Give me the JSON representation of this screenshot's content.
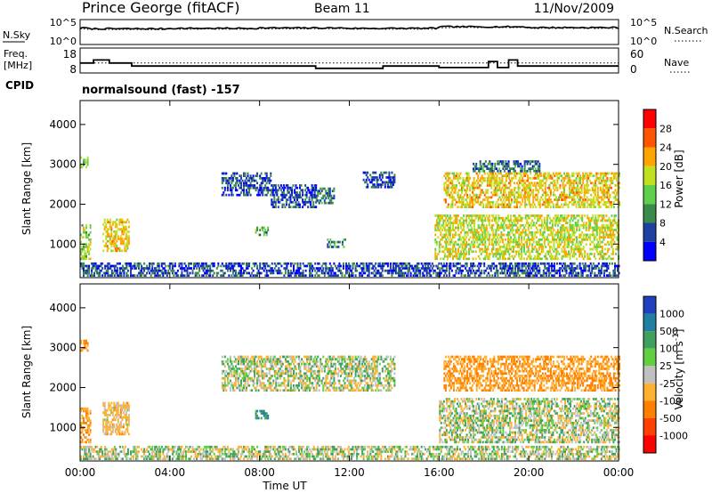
{
  "header": {
    "station": "Prince George (fitACF)",
    "beam": "Beam 11",
    "date": "11/Nov/2009"
  },
  "noise_panel": {
    "left_label": "N.Sky",
    "left_ticks": [
      "10^5",
      "10^0"
    ],
    "right_label": "N.Search",
    "right_ticks": [
      "10^5",
      "10^0"
    ]
  },
  "freq_panel": {
    "left_label_1": "Freq.",
    "left_label_2": "[MHz]",
    "left_ticks": [
      "18",
      "8"
    ],
    "right_label": "Nave",
    "right_ticks": [
      "60",
      "0"
    ],
    "cpid_label": "CPID",
    "cpid_text": "normalsound (fast) -157"
  },
  "colors": {
    "power_scale": [
      "#0000ff",
      "#1f40a0",
      "#3a8a4a",
      "#5fd04a",
      "#c0e020",
      "#ffa500",
      "#ff5500",
      "#ff0000"
    ],
    "velocity_scale": [
      "#2040c0",
      "#2080a0",
      "#40a060",
      "#60d040",
      "#c0c0c0",
      "#ffb030",
      "#ff8000",
      "#ff4000",
      "#ff0000"
    ],
    "ground_scatter": "#c0c0c0"
  },
  "chart_data": [
    {
      "type": "line",
      "panel": "noise",
      "series": [
        {
          "name": "N.Sky",
          "style": "solid",
          "x": [
            0,
            0.4,
            4,
            8,
            12,
            16,
            20,
            24
          ],
          "y": [
            4.0,
            3.8,
            3.9,
            4.0,
            3.9,
            4.3,
            4.1,
            4.0
          ]
        },
        {
          "name": "N.Search",
          "style": "dotted",
          "x": [
            0,
            0.4,
            4,
            8,
            12,
            16,
            20,
            24
          ],
          "y": [
            3.8,
            3.6,
            3.7,
            3.8,
            3.7,
            4.1,
            3.9,
            3.8
          ]
        }
      ]
    },
    {
      "type": "line",
      "panel": "frequency",
      "series": [
        {
          "name": "Freq.",
          "style": "solid",
          "x": [
            0,
            0.6,
            1.3,
            2.3,
            9,
            10.5,
            13.5,
            16,
            18.2,
            18.6,
            19.1,
            19.5,
            24
          ],
          "y": [
            14,
            16,
            14,
            12,
            12,
            10.5,
            12,
            11,
            15,
            11,
            16,
            12,
            12
          ]
        },
        {
          "name": "Nave",
          "style": "dotted",
          "x": [
            0,
            24
          ],
          "y": [
            36,
            36
          ]
        }
      ]
    },
    {
      "type": "heatmap",
      "title": "Power",
      "xlabel": "Time UT",
      "ylabel": "Slant Range [km]",
      "x_ticks": [
        "00:00",
        "04:00",
        "08:00",
        "12:00",
        "16:00",
        "20:00",
        "00:00"
      ],
      "y_ticks": [
        "1000",
        "2000",
        "3000",
        "4000"
      ],
      "ylim": [
        180,
        4600
      ],
      "colorbar": {
        "label": "Power [dB]",
        "ticks": [
          "4",
          "8",
          "12",
          "16",
          "20",
          "24",
          "28"
        ],
        "range": [
          0,
          32
        ]
      },
      "regions": [
        {
          "t0": 0,
          "t1": 0.45,
          "r0": 600,
          "r1": 1500,
          "value": 16
        },
        {
          "t0": 0,
          "t1": 0.35,
          "r0": 2900,
          "r1": 3200,
          "value": 14
        },
        {
          "t0": 1.0,
          "t1": 2.2,
          "r0": 800,
          "r1": 1600,
          "value": 20
        },
        {
          "t0": 0,
          "t1": 16,
          "r0": 180,
          "r1": 500,
          "value": 6
        },
        {
          "t0": 6.3,
          "t1": 8.5,
          "r0": 2200,
          "r1": 2800,
          "value": 6
        },
        {
          "t0": 8.5,
          "t1": 10.5,
          "r0": 1900,
          "r1": 2500,
          "value": 6
        },
        {
          "t0": 10.5,
          "t1": 11.3,
          "r0": 2000,
          "r1": 2400,
          "value": 8
        },
        {
          "t0": 7.8,
          "t1": 8.4,
          "r0": 1200,
          "r1": 1400,
          "value": 12
        },
        {
          "t0": 11.0,
          "t1": 11.8,
          "r0": 900,
          "r1": 1100,
          "value": 10
        },
        {
          "t0": 12.6,
          "t1": 14.0,
          "r0": 2400,
          "r1": 2800,
          "value": 6
        },
        {
          "t0": 15.8,
          "t1": 24,
          "r0": 600,
          "r1": 1700,
          "value": 18
        },
        {
          "t0": 16.2,
          "t1": 24,
          "r0": 1900,
          "r1": 2800,
          "value": 20
        },
        {
          "t0": 17.5,
          "t1": 20.5,
          "r0": 2800,
          "r1": 3100,
          "value": 8
        },
        {
          "t0": 16,
          "t1": 24,
          "r0": 180,
          "r1": 500,
          "value": 6
        }
      ]
    },
    {
      "type": "heatmap",
      "title": "Velocity",
      "xlabel": "Time UT",
      "ylabel": "Slant Range [km]",
      "x_ticks": [
        "00:00",
        "04:00",
        "08:00",
        "12:00",
        "16:00",
        "20:00",
        "00:00"
      ],
      "y_ticks": [
        "1000",
        "2000",
        "3000",
        "4000"
      ],
      "ylim": [
        180,
        4600
      ],
      "colorbar": {
        "label": "Velocity [m s^-1]",
        "ticks": [
          "1000",
          "500",
          "100",
          "25",
          "-25",
          "-100",
          "-500",
          "-1000"
        ]
      },
      "regions": [
        {
          "t0": 0,
          "t1": 0.45,
          "r0": 600,
          "r1": 1500,
          "value": -100
        },
        {
          "t0": 0,
          "t1": 0.35,
          "r0": 2900,
          "r1": 3200,
          "value": -100
        },
        {
          "t0": 1.0,
          "t1": 2.2,
          "r0": 800,
          "r1": 1600,
          "value": -50
        },
        {
          "t0": 0,
          "t1": 16,
          "r0": 180,
          "r1": 500,
          "value": 0
        },
        {
          "t0": 6.3,
          "t1": 14.0,
          "r0": 1900,
          "r1": 2800,
          "value": 0
        },
        {
          "t0": 7.8,
          "t1": 8.4,
          "r0": 1200,
          "r1": 1400,
          "value": 80
        },
        {
          "t0": 16,
          "t1": 24,
          "r0": 600,
          "r1": 1700,
          "value": 0
        },
        {
          "t0": 16.2,
          "t1": 24,
          "r0": 1900,
          "r1": 2800,
          "value": -100
        },
        {
          "t0": 16,
          "t1": 24,
          "r0": 180,
          "r1": 500,
          "value": 0
        }
      ]
    }
  ]
}
